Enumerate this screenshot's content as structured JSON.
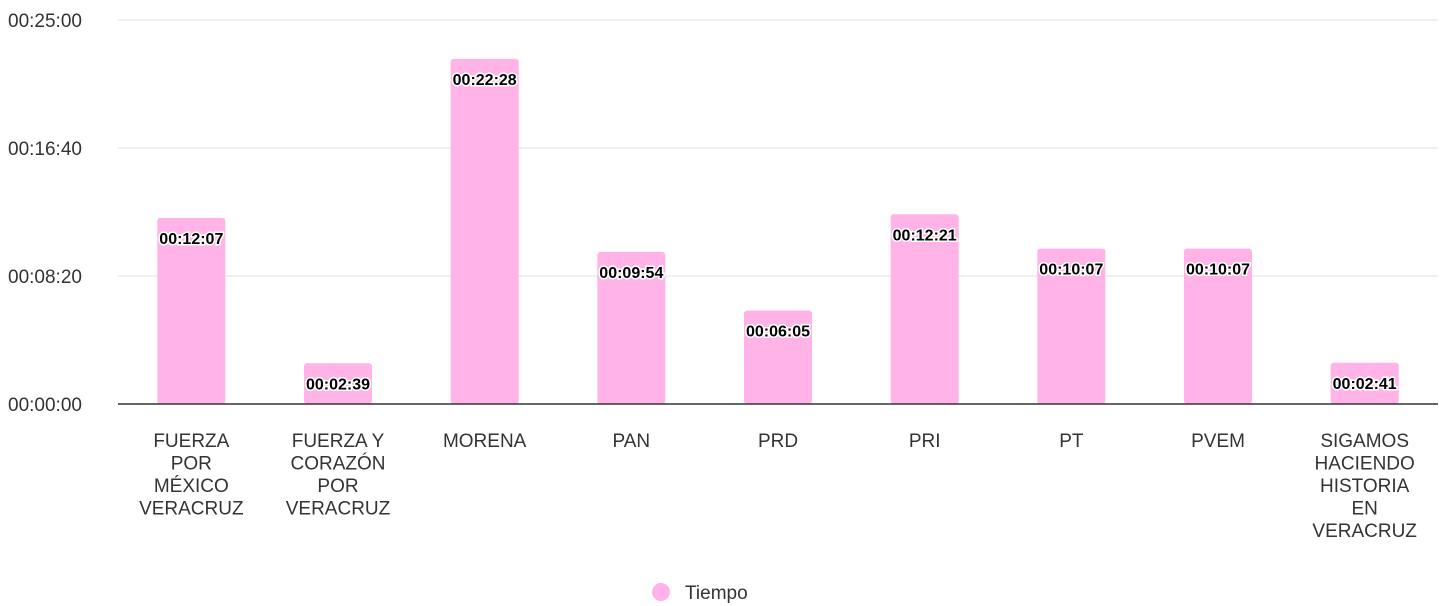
{
  "chart_data": {
    "type": "bar",
    "categories": [
      "FUERZA POR MÉXICO VERACRUZ",
      "FUERZA Y CORAZÓN POR VERACRUZ",
      "MORENA",
      "PAN",
      "PRD",
      "PRI",
      "PT",
      "PVEM",
      "SIGAMOS HACIENDO HISTORIA EN VERACRUZ"
    ],
    "category_lines": [
      [
        "FUERZA",
        "POR",
        "MÉXICO",
        "VERACRUZ"
      ],
      [
        "FUERZA Y",
        "CORAZÓN",
        "POR",
        "VERACRUZ"
      ],
      [
        "MORENA"
      ],
      [
        "PAN"
      ],
      [
        "PRD"
      ],
      [
        "PRI"
      ],
      [
        "PT"
      ],
      [
        "PVEM"
      ],
      [
        "SIGAMOS",
        "HACIENDO",
        "HISTORIA",
        "EN",
        "VERACRUZ"
      ]
    ],
    "series": [
      {
        "name": "Tiempo",
        "color": "#ffb3e6",
        "values_seconds": [
          727,
          159,
          1348,
          594,
          365,
          741,
          607,
          607,
          161
        ],
        "labels": [
          "00:12:07",
          "00:02:39",
          "00:22:28",
          "00:09:54",
          "00:06:05",
          "00:12:21",
          "00:10:07",
          "00:10:07",
          "00:02:41"
        ]
      }
    ],
    "y_ticks": [
      "00:00:00",
      "00:08:20",
      "00:16:40",
      "00:25:00"
    ],
    "y_tick_values_seconds": [
      0,
      500,
      1000,
      1500
    ],
    "ylim_seconds": [
      0,
      1500
    ],
    "grid": true,
    "legend_position": "bottom"
  }
}
